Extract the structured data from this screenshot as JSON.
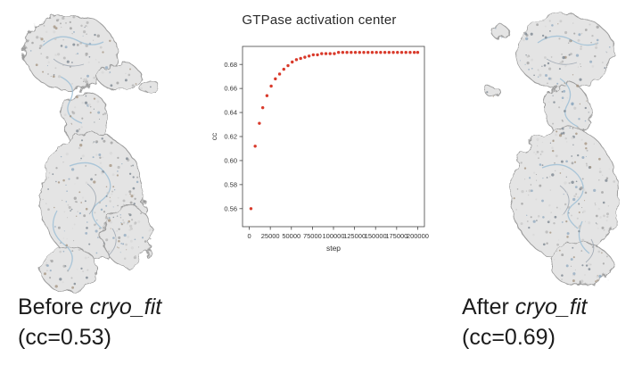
{
  "captions": {
    "before_prefix": "Before ",
    "before_italic": "cryo_fit",
    "before_cc": "(cc=0.53)",
    "after_prefix": "After ",
    "after_italic": "cryo_fit",
    "after_cc": "(cc=0.69)"
  },
  "chart_data": {
    "type": "scatter",
    "title": "GTPase activation center",
    "xlabel": "step",
    "ylabel": "cc",
    "xlim": [
      0,
      200000
    ],
    "ylim": [
      0.545,
      0.695
    ],
    "x_ticks": [
      0,
      25000,
      50000,
      75000,
      100000,
      125000,
      150000,
      175000,
      200000
    ],
    "y_ticks": [
      0.56,
      0.58,
      0.6,
      0.62,
      0.64,
      0.66,
      0.68
    ],
    "marker_color": "#d93a2b",
    "grid": false,
    "legend": "none",
    "points": [
      [
        2000,
        0.56
      ],
      [
        7000,
        0.612
      ],
      [
        12000,
        0.631
      ],
      [
        16000,
        0.644
      ],
      [
        21000,
        0.654
      ],
      [
        26000,
        0.662
      ],
      [
        31000,
        0.668
      ],
      [
        36000,
        0.672
      ],
      [
        41000,
        0.676
      ],
      [
        46000,
        0.679
      ],
      [
        51000,
        0.682
      ],
      [
        56000,
        0.684
      ],
      [
        61000,
        0.685
      ],
      [
        66000,
        0.686
      ],
      [
        71000,
        0.687
      ],
      [
        76000,
        0.688
      ],
      [
        81000,
        0.688
      ],
      [
        86000,
        0.689
      ],
      [
        91000,
        0.689
      ],
      [
        96000,
        0.689
      ],
      [
        101000,
        0.689
      ],
      [
        106000,
        0.69
      ],
      [
        111000,
        0.69
      ],
      [
        116000,
        0.69
      ],
      [
        121000,
        0.69
      ],
      [
        126000,
        0.69
      ],
      [
        131000,
        0.69
      ],
      [
        136000,
        0.69
      ],
      [
        141000,
        0.69
      ],
      [
        146000,
        0.69
      ],
      [
        151000,
        0.69
      ],
      [
        156000,
        0.69
      ],
      [
        161000,
        0.69
      ],
      [
        166000,
        0.69
      ],
      [
        171000,
        0.69
      ],
      [
        176000,
        0.69
      ],
      [
        181000,
        0.69
      ],
      [
        186000,
        0.69
      ],
      [
        191000,
        0.69
      ],
      [
        196000,
        0.69
      ],
      [
        200000,
        0.69
      ]
    ]
  }
}
